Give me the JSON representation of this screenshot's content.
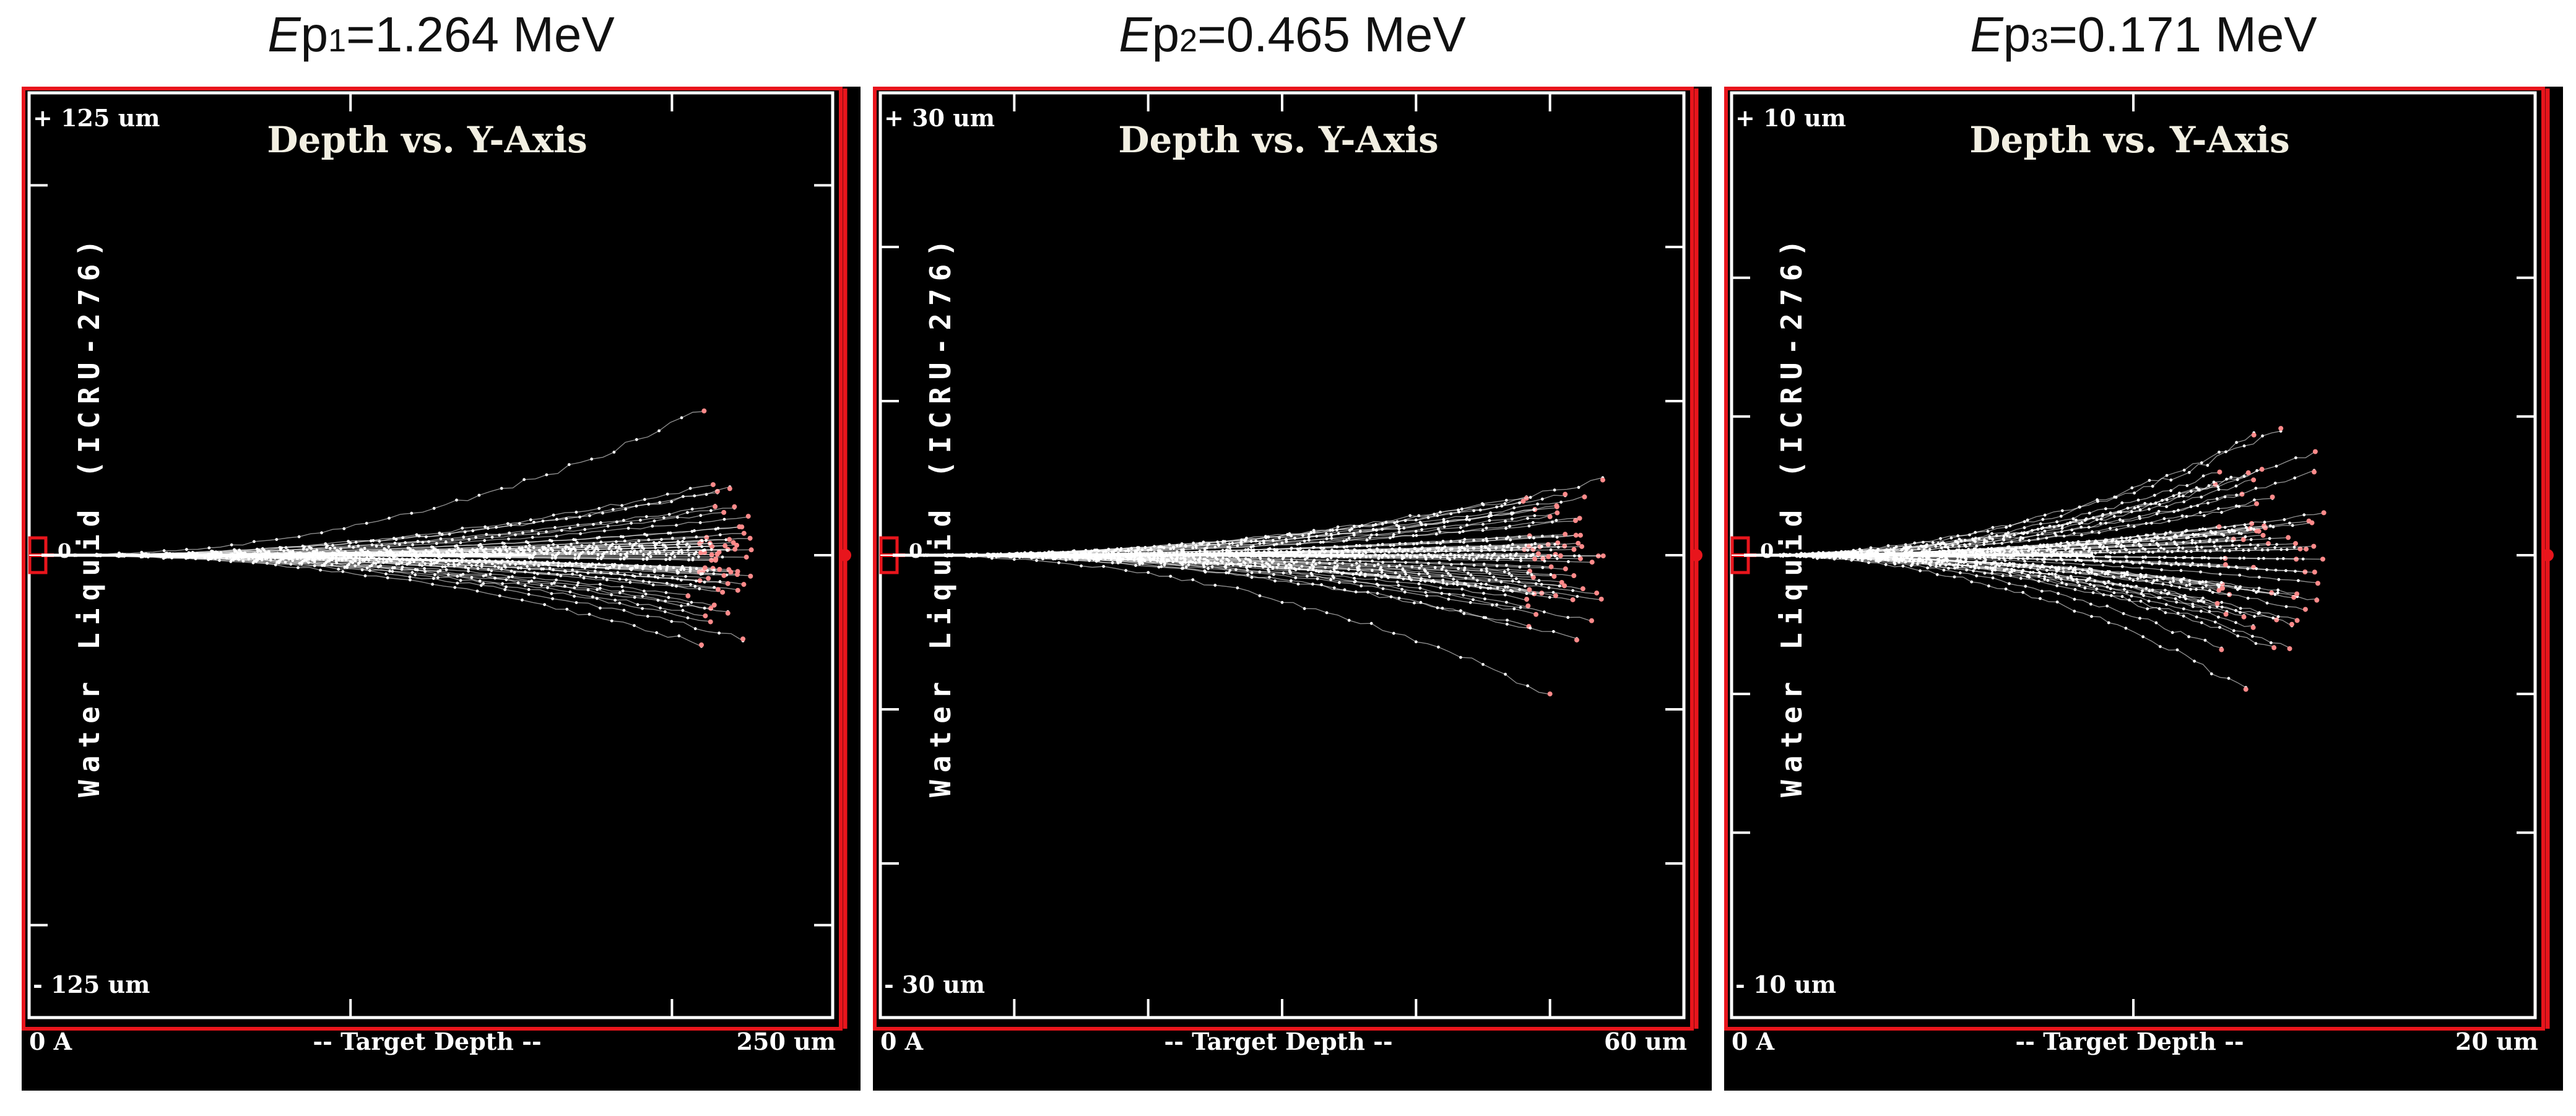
{
  "figure": {
    "panels": [
      {
        "heading_e": "E",
        "heading_p": "p",
        "heading_sub": "1",
        "heading_rest": "=1.264 MeV",
        "plot_title": "Depth vs. Y-Axis",
        "y_top_label": "+ 125 um",
        "y_bottom_label": "- 125 um",
        "y_zero_label": "0",
        "y_axis_label": "Water Liquid (ICRU-276)",
        "x_min_label": "0 A",
        "x_axis_label": "-- Target Depth --",
        "x_max_label": "250 um"
      },
      {
        "heading_e": "E",
        "heading_p": "p",
        "heading_sub": "2",
        "heading_rest": "=0.465 MeV",
        "plot_title": "Depth vs. Y-Axis",
        "y_top_label": "+ 30 um",
        "y_bottom_label": "- 30 um",
        "y_zero_label": "0",
        "y_axis_label": "Water Liquid (ICRU-276)",
        "x_min_label": "0 A",
        "x_axis_label": "-- Target Depth --",
        "x_max_label": "60 um"
      },
      {
        "heading_e": "E",
        "heading_p": "p",
        "heading_sub": "3",
        "heading_rest": "=0.171 MeV",
        "plot_title": "Depth vs. Y-Axis",
        "y_top_label": "+ 10 um",
        "y_bottom_label": "- 10 um",
        "y_zero_label": "0",
        "y_axis_label": "Water Liquid (ICRU-276)",
        "x_min_label": "0 A",
        "x_axis_label": "-- Target Depth --",
        "x_max_label": "20 um"
      }
    ]
  },
  "colors": {
    "frame": "#e8151c",
    "plot_background": "#000000",
    "tracks": "#ffffff",
    "track_ends": "#ff8a8a",
    "title_text": "#f2efe2"
  },
  "chart_data": [
    {
      "type": "scatter",
      "title": "Depth vs. Y-Axis",
      "heading": "Ep1=1.264 MeV",
      "xlabel": "Target Depth",
      "ylabel": "Water Liquid (ICRU-276)",
      "xlim": [
        0,
        250
      ],
      "ylim": [
        -125,
        125
      ],
      "units": "um",
      "x_ticks": [
        0,
        100,
        200,
        250
      ],
      "y_ticks": [
        -100,
        0,
        100
      ],
      "seed": 11,
      "n_tracks": 55,
      "track_ends_x": [
        208,
        225
      ],
      "track_end_y_spread": 20,
      "outlier_tracks": [
        [
          210,
          39
        ],
        [
          218,
          18
        ],
        [
          212,
          -18
        ],
        [
          205,
          -11
        ]
      ]
    },
    {
      "type": "scatter",
      "title": "Depth vs. Y-Axis",
      "heading": "Ep2=0.465 MeV",
      "xlabel": "Target Depth",
      "ylabel": "Water Liquid (ICRU-276)",
      "xlim": [
        0,
        60
      ],
      "ylim": [
        -30,
        30
      ],
      "units": "um",
      "x_ticks": [
        0,
        10,
        20,
        30,
        40,
        50,
        60
      ],
      "y_ticks": [
        -20,
        -10,
        0,
        10,
        20
      ],
      "seed": 23,
      "n_tracks": 55,
      "track_ends_x": [
        48,
        54
      ],
      "track_end_y_spread": 5,
      "outlier_tracks": [
        [
          50,
          -9
        ],
        [
          52,
          -5.5
        ],
        [
          48,
          3.5
        ],
        [
          50,
          2.5
        ]
      ]
    },
    {
      "type": "scatter",
      "title": "Depth vs. Y-Axis",
      "heading": "Ep3=0.171 MeV",
      "xlabel": "Target Depth",
      "ylabel": "Water Liquid (ICRU-276)",
      "xlim": [
        0,
        20
      ],
      "ylim": [
        -10,
        10
      ],
      "units": "um",
      "x_ticks": [
        0,
        10,
        20
      ],
      "y_ticks": [
        -6,
        -3,
        0,
        3,
        6
      ],
      "seed": 37,
      "n_tracks": 55,
      "track_ends_x": [
        12,
        15
      ],
      "track_end_y_spread": 2.2,
      "outlier_tracks": [
        [
          13,
          2.6
        ],
        [
          12.8,
          -2.9
        ],
        [
          14.5,
          1.8
        ],
        [
          13.5,
          -2
        ]
      ]
    }
  ]
}
